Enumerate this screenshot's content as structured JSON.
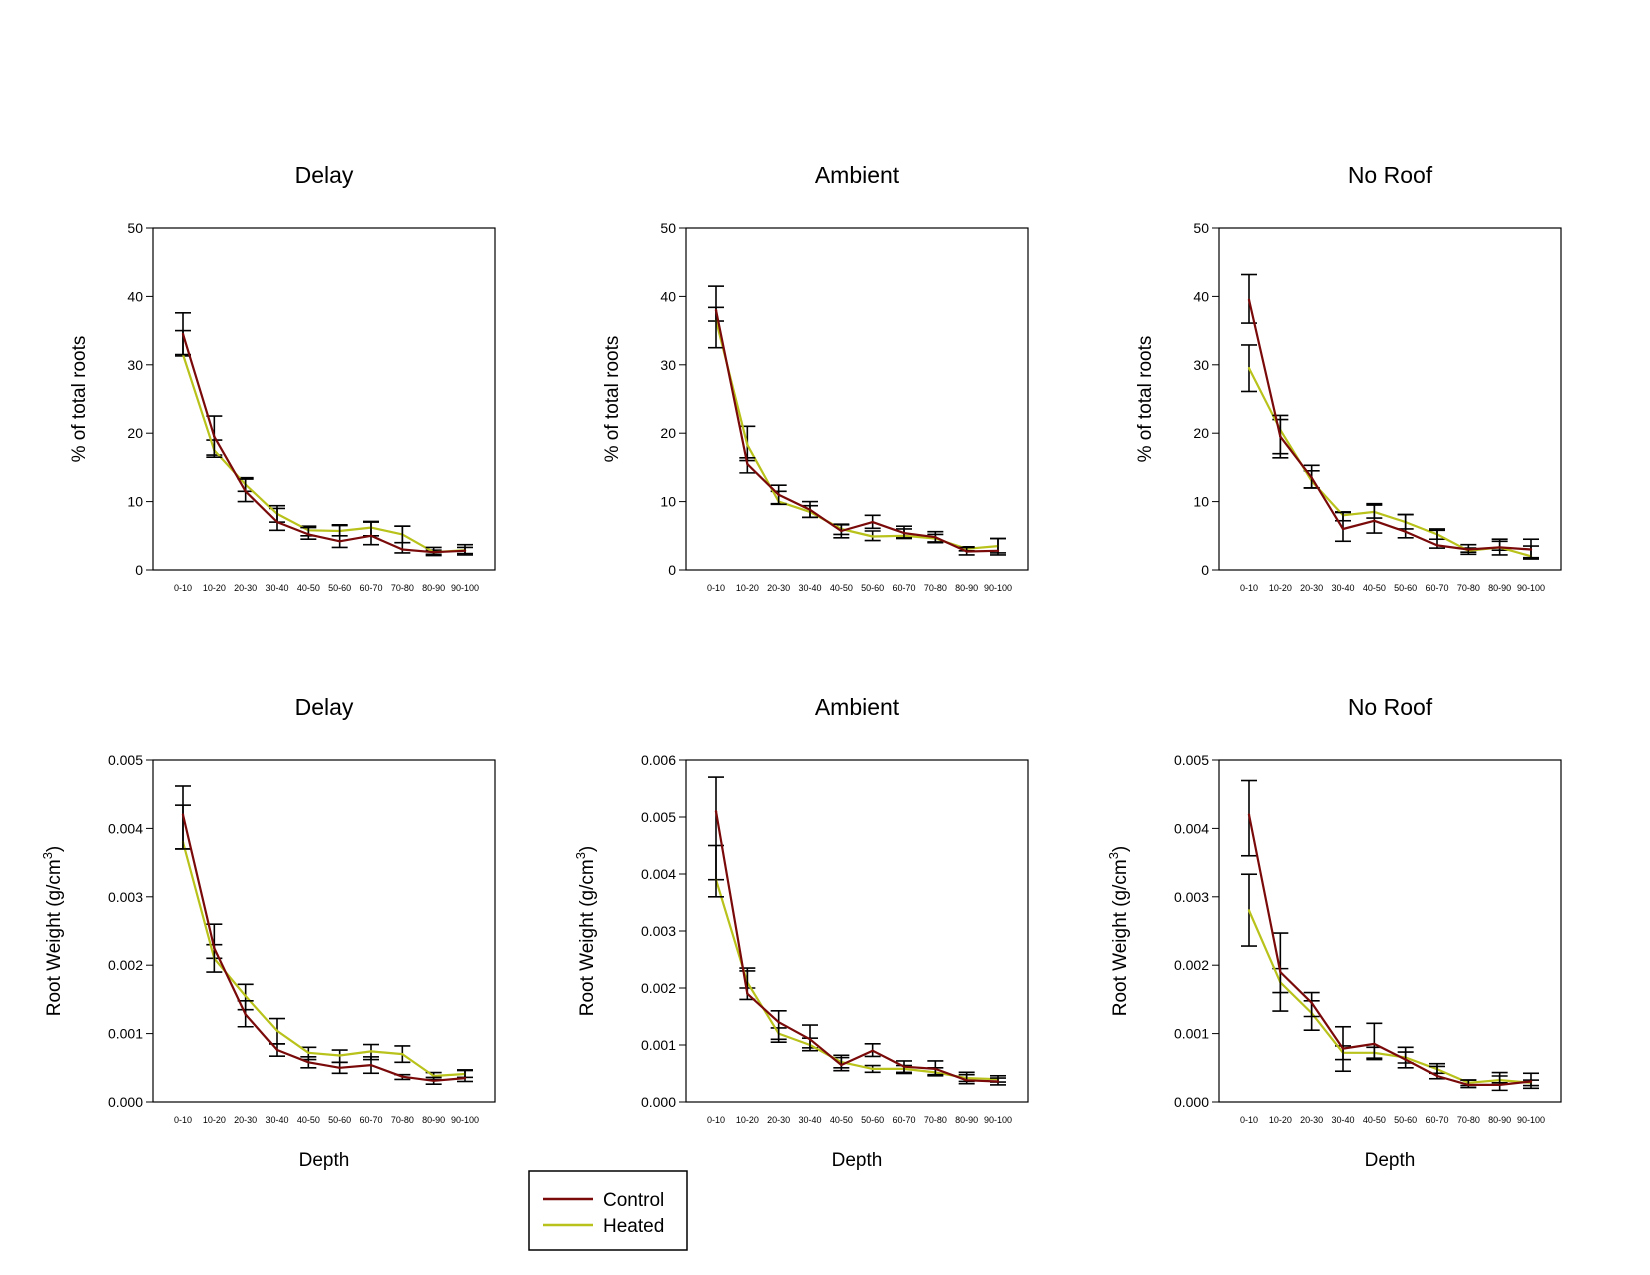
{
  "legend": {
    "items": [
      {
        "label": "Control",
        "color": "#7a0a0a"
      },
      {
        "label": "Heated",
        "color": "#b8c21a"
      }
    ]
  },
  "chart_data": [
    {
      "type": "line",
      "title": "Delay",
      "xlabel": "",
      "ylabel": "% of total roots",
      "ylabel_sup": "",
      "ylabel_tail": "",
      "categories": [
        "0-10",
        "10-20",
        "20-30",
        "30-40",
        "40-50",
        "50-60",
        "60-70",
        "70-80",
        "80-90",
        "90-100"
      ],
      "ylim": [
        0,
        50
      ],
      "yticks": [
        0,
        10,
        20,
        30,
        40,
        50
      ],
      "ytick_labels": [
        "0",
        "10",
        "20",
        "30",
        "40",
        "50"
      ],
      "series": [
        {
          "name": "Control",
          "values": [
            34.5,
            19.5,
            11.5,
            7.0,
            5.2,
            4.2,
            5.0,
            3.0,
            2.6,
            2.8
          ],
          "err_low": [
            31.5,
            16.5,
            10.0,
            5.8,
            4.5,
            3.3,
            3.7,
            2.5,
            2.1,
            2.2
          ],
          "err_high": [
            37.6,
            22.5,
            13.3,
            9.4,
            6.2,
            6.6,
            7.1,
            6.4,
            3.3,
            3.7
          ]
        },
        {
          "name": "Heated",
          "values": [
            31.5,
            17.5,
            12.5,
            8.2,
            5.8,
            5.7,
            6.2,
            5.2,
            2.6,
            2.9
          ],
          "err_low": [
            31.3,
            16.8,
            11.5,
            7.0,
            5.0,
            5.0,
            5.0,
            4.0,
            2.3,
            2.4
          ],
          "err_high": [
            35.0,
            19.0,
            13.5,
            9.0,
            6.4,
            6.5,
            7.0,
            6.4,
            2.9,
            3.3
          ]
        }
      ]
    },
    {
      "type": "line",
      "title": "Ambient",
      "xlabel": "",
      "ylabel": "% of total roots",
      "ylabel_sup": "",
      "ylabel_tail": "",
      "categories": [
        "0-10",
        "10-20",
        "20-30",
        "30-40",
        "40-50",
        "50-60",
        "60-70",
        "70-80",
        "80-90",
        "90-100"
      ],
      "ylim": [
        0,
        50
      ],
      "yticks": [
        0,
        10,
        20,
        30,
        40,
        50
      ],
      "ytick_labels": [
        "0",
        "10",
        "20",
        "30",
        "40",
        "50"
      ],
      "series": [
        {
          "name": "Control",
          "values": [
            38.0,
            15.5,
            11.0,
            8.8,
            5.7,
            7.0,
            5.4,
            4.8,
            2.7,
            2.8
          ],
          "err_low": [
            32.5,
            14.2,
            9.6,
            7.7,
            4.7,
            6.1,
            4.7,
            4.1,
            2.2,
            2.2
          ],
          "err_high": [
            41.5,
            16.4,
            12.4,
            10.0,
            6.7,
            8.0,
            6.4,
            5.6,
            3.3,
            4.6
          ]
        },
        {
          "name": "Heated",
          "values": [
            36.5,
            18.3,
            10.0,
            8.5,
            6.0,
            4.9,
            5.0,
            4.6,
            3.1,
            3.5
          ],
          "err_low": [
            36.4,
            16.0,
            9.7,
            7.7,
            5.2,
            4.3,
            4.6,
            4.0,
            2.8,
            2.5
          ],
          "err_high": [
            38.4,
            21.0,
            11.5,
            9.4,
            6.6,
            5.7,
            6.0,
            5.2,
            3.4,
            4.6
          ]
        }
      ]
    },
    {
      "type": "line",
      "title": "No Roof",
      "xlabel": "",
      "ylabel": "% of total roots",
      "ylabel_sup": "",
      "ylabel_tail": "",
      "categories": [
        "0-10",
        "10-20",
        "20-30",
        "30-40",
        "40-50",
        "50-60",
        "60-70",
        "70-80",
        "80-90",
        "90-100"
      ],
      "ylim": [
        0,
        50
      ],
      "yticks": [
        0,
        10,
        20,
        30,
        40,
        50
      ],
      "ytick_labels": [
        "0",
        "10",
        "20",
        "30",
        "40",
        "50"
      ],
      "series": [
        {
          "name": "Control",
          "values": [
            39.5,
            19.5,
            13.5,
            6.0,
            7.2,
            5.6,
            3.6,
            3.0,
            3.3,
            3.0
          ],
          "err_low": [
            36.1,
            16.4,
            12.0,
            4.2,
            5.4,
            4.7,
            3.2,
            2.3,
            2.2,
            1.8
          ],
          "err_high": [
            43.2,
            22.6,
            15.3,
            8.4,
            9.7,
            8.1,
            5.8,
            3.7,
            4.5,
            4.5
          ]
        },
        {
          "name": "Heated",
          "values": [
            29.5,
            20.5,
            13.0,
            8.0,
            8.5,
            7.0,
            5.2,
            2.8,
            3.3,
            2.0
          ],
          "err_low": [
            26.1,
            17.0,
            12.0,
            7.2,
            7.6,
            6.0,
            4.5,
            2.6,
            2.9,
            1.6
          ],
          "err_high": [
            32.9,
            22.0,
            14.5,
            8.5,
            9.5,
            8.1,
            6.0,
            3.2,
            4.2,
            3.5
          ]
        }
      ]
    },
    {
      "type": "line",
      "title": "Delay",
      "xlabel": "Depth",
      "ylabel": "Root Weight (g/cm",
      "ylabel_sup": "3",
      "ylabel_tail": ")",
      "categories": [
        "0-10",
        "10-20",
        "20-30",
        "30-40",
        "40-50",
        "50-60",
        "60-70",
        "70-80",
        "80-90",
        "90-100"
      ],
      "ylim": [
        0,
        0.005
      ],
      "yticks": [
        0,
        0.001,
        0.002,
        0.003,
        0.004,
        0.005
      ],
      "ytick_labels": [
        "0.000",
        "0.001",
        "0.002",
        "0.003",
        "0.004",
        "0.005"
      ],
      "series": [
        {
          "name": "Control",
          "values": [
            0.0042,
            0.00225,
            0.00128,
            0.00076,
            0.00058,
            0.0005,
            0.00054,
            0.00037,
            0.00031,
            0.00035
          ],
          "err_low": [
            0.0037,
            0.0019,
            0.0011,
            0.00067,
            0.0005,
            0.00042,
            0.00042,
            0.00033,
            0.00026,
            0.0003
          ],
          "err_high": [
            0.00462,
            0.0026,
            0.00148,
            0.00085,
            0.00066,
            0.00058,
            0.00066,
            0.0004,
            0.00036,
            0.00046
          ]
        },
        {
          "name": "Heated",
          "values": [
            0.0038,
            0.0021,
            0.00155,
            0.00104,
            0.00072,
            0.00068,
            0.00074,
            0.0007,
            0.00038,
            0.00041
          ],
          "err_low": [
            0.0037,
            0.0021,
            0.00135,
            0.00085,
            0.00062,
            0.00058,
            0.00062,
            0.00058,
            0.00033,
            0.00036
          ],
          "err_high": [
            0.00434,
            0.0023,
            0.00172,
            0.00122,
            0.0008,
            0.00076,
            0.00084,
            0.00082,
            0.00043,
            0.00047
          ]
        }
      ]
    },
    {
      "type": "line",
      "title": "Ambient",
      "xlabel": "Depth",
      "ylabel": "Root Weight (g/cm",
      "ylabel_sup": "3",
      "ylabel_tail": ")",
      "categories": [
        "0-10",
        "10-20",
        "20-30",
        "30-40",
        "40-50",
        "50-60",
        "60-70",
        "70-80",
        "80-90",
        "90-100"
      ],
      "ylim": [
        0,
        0.006
      ],
      "yticks": [
        0,
        0.001,
        0.002,
        0.003,
        0.004,
        0.005,
        0.006
      ],
      "ytick_labels": [
        "0.000",
        "0.001",
        "0.002",
        "0.003",
        "0.004",
        "0.005",
        "0.006"
      ],
      "series": [
        {
          "name": "Control",
          "values": [
            0.0051,
            0.0019,
            0.0014,
            0.0011,
            0.00065,
            0.0009,
            0.00062,
            0.00058,
            0.00038,
            0.00036
          ],
          "err_low": [
            0.0036,
            0.0018,
            0.00105,
            0.0009,
            0.00055,
            0.0008,
            0.0005,
            0.00048,
            0.00032,
            0.0003
          ],
          "err_high": [
            0.0057,
            0.00235,
            0.0016,
            0.00135,
            0.00082,
            0.00102,
            0.00072,
            0.00072,
            0.00052,
            0.00042
          ]
        },
        {
          "name": "Heated",
          "values": [
            0.0039,
            0.0021,
            0.0012,
            0.001,
            0.0007,
            0.00058,
            0.00058,
            0.00052,
            0.00042,
            0.0004
          ],
          "err_low": [
            0.0039,
            0.002,
            0.0011,
            0.00095,
            0.0006,
            0.00052,
            0.00052,
            0.00046,
            0.00036,
            0.00035
          ],
          "err_high": [
            0.0045,
            0.0023,
            0.0013,
            0.00112,
            0.00078,
            0.00064,
            0.00064,
            0.0006,
            0.00048,
            0.00046
          ]
        }
      ]
    },
    {
      "type": "line",
      "title": "No Roof",
      "xlabel": "Depth",
      "ylabel": "Root Weight (g/cm",
      "ylabel_sup": "3",
      "ylabel_tail": ")",
      "categories": [
        "0-10",
        "10-20",
        "20-30",
        "30-40",
        "40-50",
        "50-60",
        "60-70",
        "70-80",
        "80-90",
        "90-100"
      ],
      "ylim": [
        0,
        0.005
      ],
      "yticks": [
        0,
        0.001,
        0.002,
        0.003,
        0.004,
        0.005
      ],
      "ytick_labels": [
        "0.000",
        "0.001",
        "0.002",
        "0.003",
        "0.004",
        "0.005"
      ],
      "series": [
        {
          "name": "Control",
          "values": [
            0.0042,
            0.0019,
            0.00145,
            0.00078,
            0.00085,
            0.00062,
            0.00038,
            0.00025,
            0.00025,
            0.0003
          ],
          "err_low": [
            0.0036,
            0.0016,
            0.00125,
            0.00045,
            0.00062,
            0.0005,
            0.00034,
            0.00021,
            0.00017,
            0.0002
          ],
          "err_high": [
            0.0047,
            0.00247,
            0.0016,
            0.0011,
            0.00115,
            0.0008,
            0.00052,
            0.00032,
            0.00043,
            0.00042
          ]
        },
        {
          "name": "Heated",
          "values": [
            0.0028,
            0.00175,
            0.0013,
            0.00072,
            0.00072,
            0.00065,
            0.00048,
            0.00028,
            0.00032,
            0.00028
          ],
          "err_low": [
            0.00228,
            0.00133,
            0.00105,
            0.00062,
            0.00064,
            0.00057,
            0.00042,
            0.00024,
            0.00028,
            0.00024
          ],
          "err_high": [
            0.00333,
            0.00195,
            0.00148,
            0.00082,
            0.0008,
            0.00073,
            0.00056,
            0.00032,
            0.00038,
            0.00032
          ]
        }
      ]
    }
  ]
}
